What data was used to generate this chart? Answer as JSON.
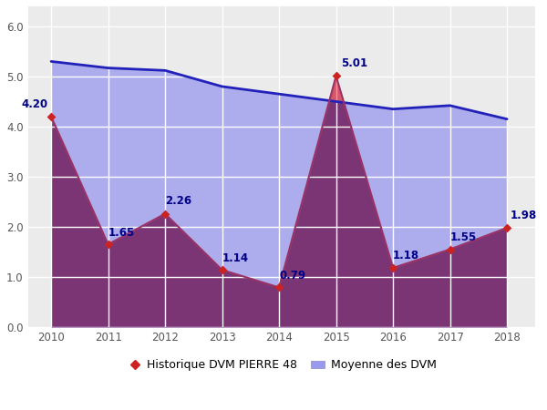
{
  "years": [
    2010,
    2011,
    2012,
    2013,
    2014,
    2015,
    2016,
    2017,
    2018
  ],
  "pierre48": [
    4.2,
    1.65,
    2.26,
    1.14,
    0.79,
    5.01,
    1.18,
    1.55,
    1.98
  ],
  "moyenne": [
    5.3,
    5.17,
    5.12,
    4.8,
    4.65,
    4.5,
    4.35,
    4.42,
    4.15
  ],
  "pierre48_line_color": "#993366",
  "pierre48_fill_color": "#7B3575",
  "pierre48_fill_alpha": 1.0,
  "moyenne_line_color": "#2222BB",
  "moyenne_fill_color": "#9999EE",
  "moyenne_fill_alpha": 0.75,
  "above_fill_color": "#FF6666",
  "above_fill_alpha": 0.7,
  "marker_color": "#CC2222",
  "label_color": "#000088",
  "label_fontsize": 8.5,
  "ylim": [
    0.0,
    6.4
  ],
  "yticks": [
    0.0,
    1.0,
    2.0,
    3.0,
    4.0,
    5.0,
    6.0
  ],
  "legend_pierre": "Historique DVM PIERRE 48",
  "legend_moyenne": "Moyenne des DVM",
  "bg_color": "#EBEBEB",
  "grid_color": "#FFFFFF",
  "fig_bg": "#FFFFFF",
  "label_offsets_x": [
    0,
    0,
    0,
    0,
    0,
    0,
    0,
    0,
    0
  ],
  "label_offsets_y": [
    0.13,
    0.12,
    0.13,
    0.12,
    0.12,
    0.14,
    0.12,
    0.12,
    0.13
  ]
}
